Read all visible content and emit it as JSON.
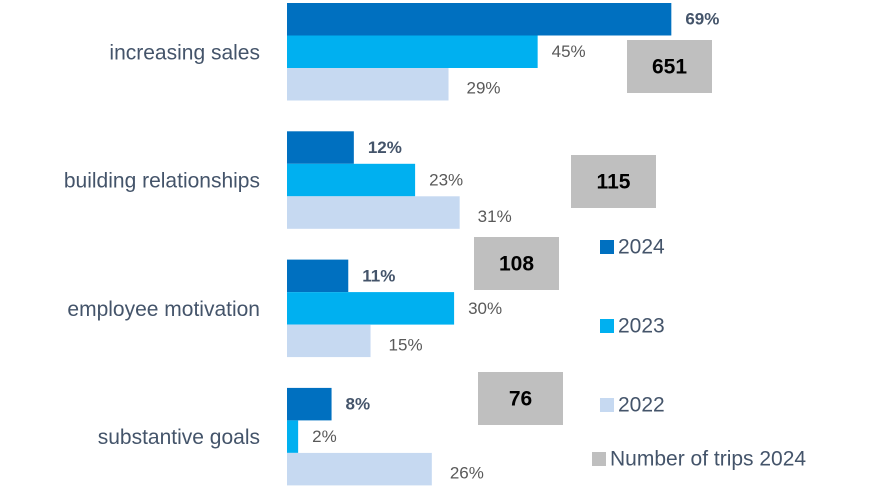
{
  "chart_data": {
    "type": "bar",
    "orientation": "horizontal",
    "categories": [
      "increasing sales",
      "building relationships",
      "employee motivation",
      "substantive goals"
    ],
    "series": [
      {
        "name": "2024",
        "color": "#0070c0",
        "values": [
          69,
          12,
          11,
          8
        ],
        "value_labels": [
          "69%",
          "12%",
          "11%",
          "8%"
        ]
      },
      {
        "name": "2023",
        "color": "#00b0f0",
        "values": [
          45,
          23,
          30,
          2
        ],
        "value_labels": [
          "45%",
          "23%",
          "30%",
          "2%"
        ]
      },
      {
        "name": "2022",
        "color": "#c6d9f1",
        "values": [
          29,
          31,
          15,
          26
        ],
        "value_labels": [
          "29%",
          "31%",
          "15%",
          "26%"
        ]
      },
      {
        "name": "Number of trips 2024",
        "color": "#bfbfbf",
        "values": [
          651,
          115,
          108,
          76
        ]
      }
    ],
    "legend": "right"
  }
}
